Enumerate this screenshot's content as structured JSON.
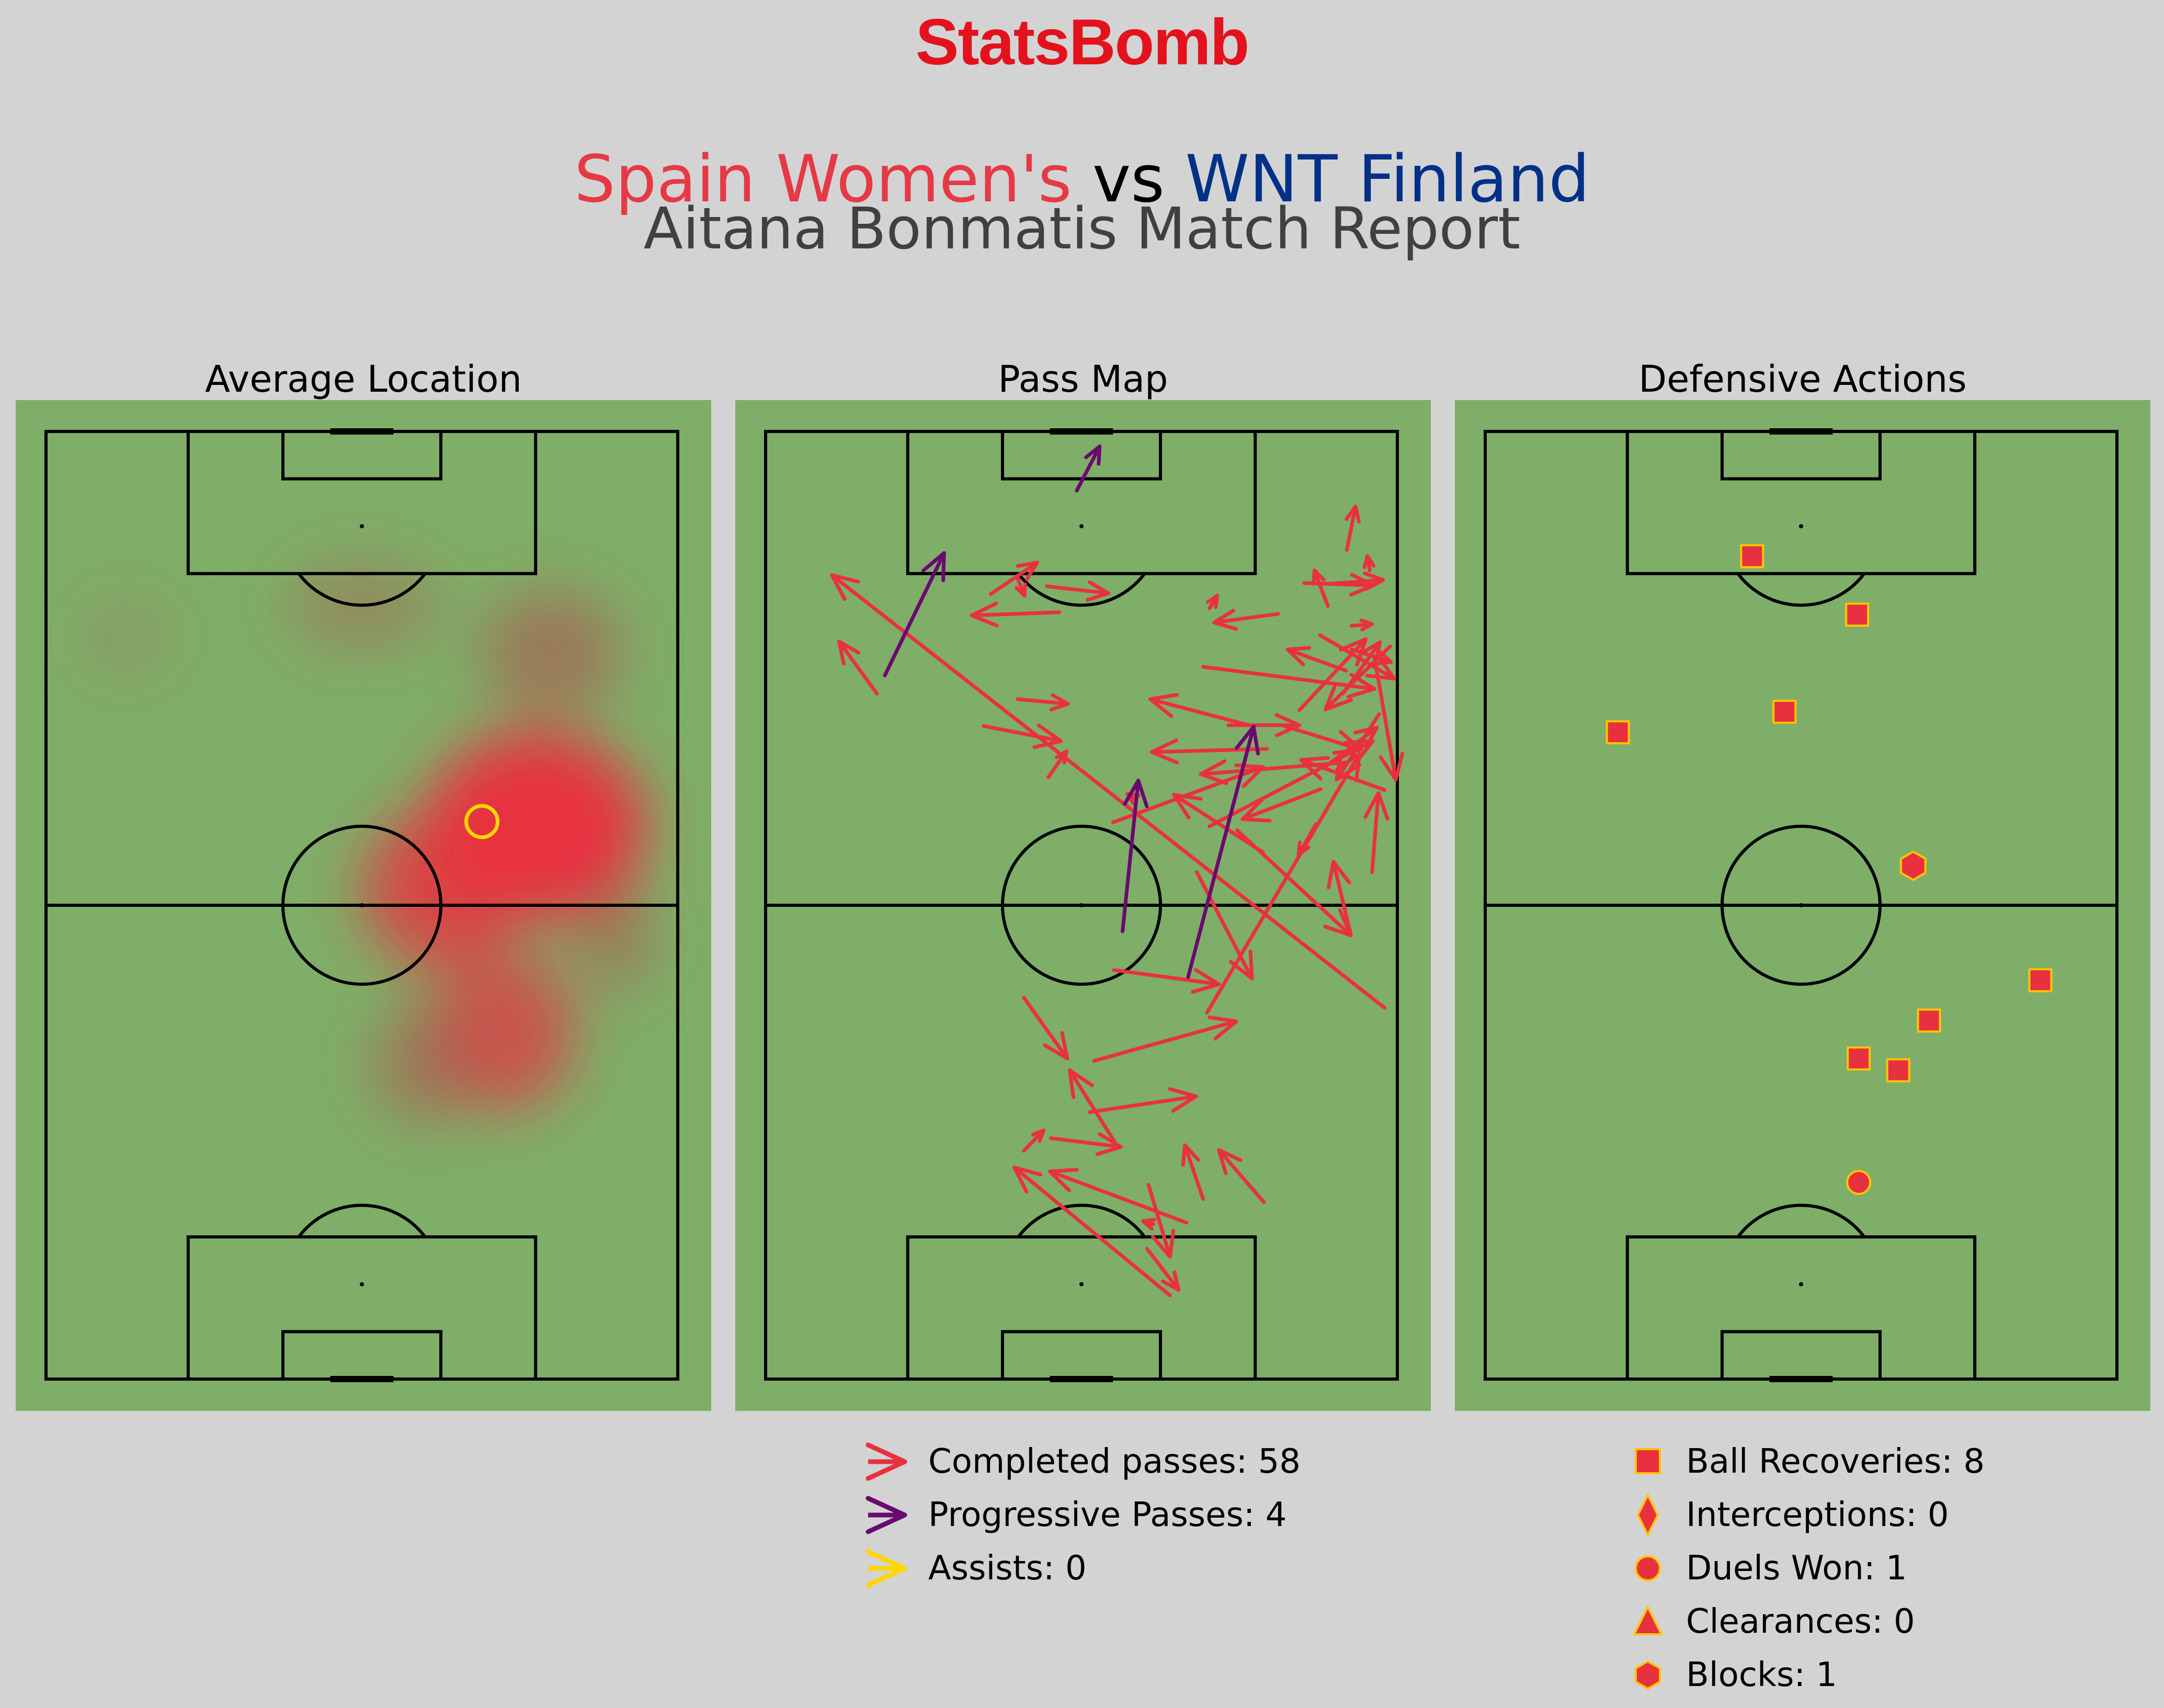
{
  "brand": {
    "name": "StatsBomb",
    "color": "#e3121d"
  },
  "header": {
    "home": "Spain Women's",
    "vs": "vs",
    "away": "WNT Finland",
    "subtitle": "Aitana Bonmatis Match Report"
  },
  "colors": {
    "background": "#d3d3d3",
    "pitch": "#7fae68",
    "lines": "#000000",
    "home": "#e63946",
    "away": "#003087",
    "completed": "#e8313f",
    "progressive": "#6a0a6e",
    "assist": "#ffd700",
    "marker_fill": "#e8313f",
    "marker_edge": "#ffc400"
  },
  "panels": {
    "average_location": "Average Location",
    "pass_map": "Pass Map",
    "defensive_actions": "Defensive Actions"
  },
  "pass_legend": {
    "completed": "Completed passes: 58",
    "progressive": "Progressive Passes: 4",
    "assists": "Assists: 0"
  },
  "defense_legend": {
    "recoveries": "Ball Recoveries: 8",
    "interceptions": "Interceptions: 0",
    "duels": "Duels Won: 1",
    "clearances": "Clearances: 0",
    "blocks": "Blocks: 1"
  },
  "chart_data": [
    {
      "type": "heatmap",
      "title": "Average Location",
      "pitch": {
        "length": 120,
        "width": 80,
        "orientation": "vertical",
        "attack": "up"
      },
      "average_location": {
        "x": 70.6,
        "y": 55.2
      },
      "density_blobs": [
        {
          "x": 70,
          "y": 62,
          "rx": 12,
          "ry": 14,
          "w": 1.0
        },
        {
          "x": 62,
          "y": 50,
          "rx": 10,
          "ry": 10,
          "w": 0.8
        },
        {
          "x": 92,
          "y": 64,
          "rx": 8,
          "ry": 9,
          "w": 0.55
        },
        {
          "x": 98,
          "y": 40,
          "rx": 6,
          "ry": 10,
          "w": 0.35
        },
        {
          "x": 44,
          "y": 58,
          "rx": 10,
          "ry": 9,
          "w": 0.7
        },
        {
          "x": 40,
          "y": 48,
          "rx": 8,
          "ry": 7,
          "w": 0.5
        },
        {
          "x": 94,
          "y": 10,
          "rx": 5,
          "ry": 6,
          "w": 0.2
        },
        {
          "x": 56,
          "y": 72,
          "rx": 7,
          "ry": 5,
          "w": 0.5
        }
      ]
    },
    {
      "type": "scatter",
      "title": "Pass Map",
      "pitch": {
        "length": 120,
        "width": 80,
        "orientation": "vertical",
        "attack": "up"
      },
      "series": [
        {
          "name": "Completed passes: 58",
          "passes": [
            [
              47,
              78.4,
              101.8,
              8.4
            ],
            [
              46.4,
              55.9,
              79.2,
              75.2
            ],
            [
              82.7,
              27.6,
              80.8,
              37.4
            ],
            [
              99.4,
              28.5,
              103.4,
              34.4
            ],
            [
              101.7,
              31.8,
              99.2,
              32.8
            ],
            [
              97.1,
              37.2,
              96.7,
              26.1
            ],
            [
              100.4,
              35.6,
              99.5,
              43.4
            ],
            [
              86.8,
              14.1,
              93.4,
              9.3
            ],
            [
              105,
              73.6,
              110.5,
              74.7
            ],
            [
              96.9,
              64.9,
              95.8,
              56.8
            ],
            [
              97.6,
              56.2,
              99.2,
              57.2
            ],
            [
              97.9,
              71.2,
              102.4,
              69.5
            ],
            [
              100.7,
              71.2,
              101.2,
              78.2
            ],
            [
              102.4,
              76.5,
              104.2,
              76.2
            ],
            [
              95.4,
              74.2,
              95.6,
              76.8
            ],
            [
              89.7,
              73.5,
              92.4,
              66.1
            ],
            [
              92.4,
              74.2,
              90.8,
              79.2
            ],
            [
              86.8,
              73.1,
              93.3,
              77.8
            ],
            [
              94.2,
              70.2,
              88.7,
              79.6
            ],
            [
              91.4,
              77.1,
              75.9,
              79.8
            ],
            [
              84.2,
              77.7,
              75.9,
              72.3
            ],
            [
              82.8,
              61.2,
              86.1,
              48.7
            ],
            [
              90.2,
              55.4,
              87.4,
              77.1
            ],
            [
              82.7,
              65.7,
              79.7,
              75.4
            ],
            [
              77.7,
              71.1,
              82.5,
              77.4
            ],
            [
              79.8,
              63.5,
              79.4,
              48.9
            ],
            [
              78.1,
              73.7,
              76.6,
              55.1
            ],
            [
              82.8,
              58.6,
              82.8,
              67.6
            ],
            [
              74.6,
              78.4,
              78.4,
              67.8
            ],
            [
              70,
              56.2,
              80.8,
              76.9
            ],
            [
              64.2,
              76.8,
              74.2,
              77.6
            ],
            [
              74.7,
              70.3,
              70.9,
              60.4
            ],
            [
              69.5,
              59.7,
              56.2,
              74.1
            ],
            [
              56.3,
              74.1,
              65.5,
              71.9
            ],
            [
              48.3,
              32.7,
              40.6,
              38.2
            ],
            [
              40.3,
              41.6,
              45.3,
              59.6
            ],
            [
              70.5,
              44,
              77.5,
              63
            ],
            [
              51.8,
              44.1,
              50,
              57.4
            ],
            [
              28.9,
              32.7,
              31.5,
              35.2
            ],
            [
              29.4,
              44.6,
              39.1,
              38.5
            ],
            [
              30.5,
              36.1,
              29.4,
              45
            ],
            [
              33.8,
              41,
              35.8,
              54.5
            ],
            [
              22.8,
              55.4,
              29.6,
              53.1
            ],
            [
              22.4,
              63.1,
              29,
              57.4
            ],
            [
              24.6,
              48.5,
              15.5,
              51.2
            ],
            [
              19.8,
              53.3,
              26.3,
              36
            ],
            [
              16.5,
              48.3,
              11.3,
              52.3
            ],
            [
              10.6,
              51.2,
              26.8,
              31.5
            ],
            [
              19.6,
              49.1,
              20,
              47.8
            ],
            [
              66.7,
              63,
              74,
              51.7
            ],
            [
              73.6,
              46.6,
              74.1,
              45.8
            ],
            [
              76.2,
              35.8,
              79.5,
              38.1
            ],
            [
              64.2,
              54.6,
              50.7,
              61.6
            ],
            [
              100.8,
              68.2,
              100.5,
              77
            ],
            [
              92.8,
              79.1,
              84.8,
              70.9
            ],
            [
              84.7,
              67.6,
              93.7,
              76
            ],
            [
              86.1,
              31.9,
              85.5,
              38.3
            ],
            [
              70.3,
              69.7,
              66.4,
              67.5
            ]
          ]
        },
        {
          "name": "Progressive Passes: 4",
          "passes": [
            [
              56.7,
              45.2,
              75.8,
              47.2
            ],
            [
              50.9,
              53.5,
              82.6,
              61.8
            ],
            [
              89.1,
              15.1,
              104.6,
              22.6
            ],
            [
              112.5,
              39.4,
              118.1,
              42.3
            ]
          ]
        },
        {
          "name": "Assists: 0",
          "passes": []
        }
      ]
    },
    {
      "type": "scatter",
      "title": "Defensive Actions",
      "pitch": {
        "length": 120,
        "width": 80,
        "orientation": "vertical",
        "attack": "up"
      },
      "series": [
        {
          "name": "Ball Recoveries: 8",
          "marker": "square",
          "points": [
            [
              104.2,
              33.8
            ],
            [
              96.8,
              47.1
            ],
            [
              84.5,
              37.9
            ],
            [
              81.9,
              16.8
            ],
            [
              50.5,
              70.3
            ],
            [
              45.4,
              56.2
            ],
            [
              40.6,
              47.3
            ],
            [
              39.1,
              52.3
            ]
          ]
        },
        {
          "name": "Interceptions: 0",
          "marker": "diamond",
          "points": []
        },
        {
          "name": "Duels Won: 1",
          "marker": "circle",
          "points": [
            [
              24.9,
              47.3
            ]
          ]
        },
        {
          "name": "Clearances: 0",
          "marker": "triangle",
          "points": []
        },
        {
          "name": "Blocks: 1",
          "marker": "hexagon",
          "points": [
            [
              65,
              54.2
            ]
          ]
        }
      ]
    }
  ]
}
